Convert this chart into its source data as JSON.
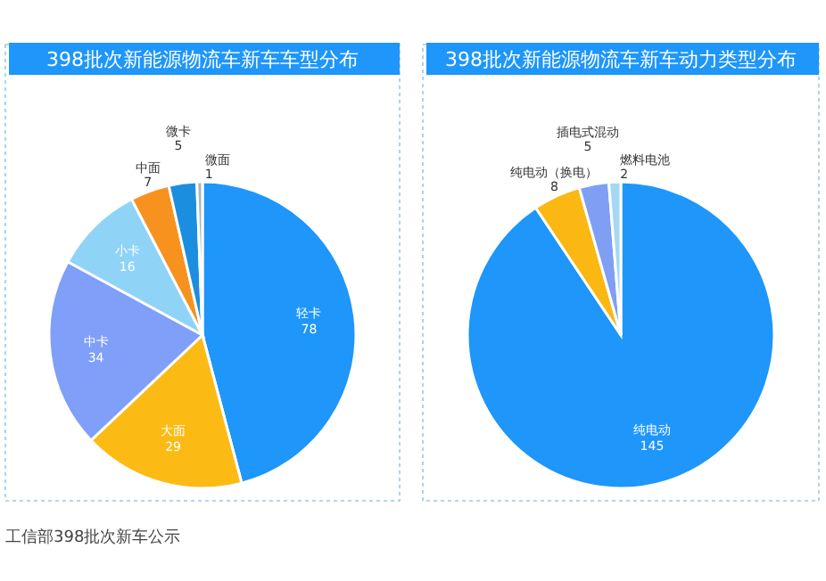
{
  "chart_data": [
    {
      "type": "pie",
      "title": "398批次新能源物流车新车车型分布",
      "categories": [
        "轻卡",
        "大面",
        "中卡",
        "小卡",
        "中面",
        "微卡",
        "微面"
      ],
      "values": [
        78,
        29,
        34,
        16,
        7,
        5,
        1
      ],
      "colors": [
        "#1e96fa",
        "#fbbb14",
        "#7f9ff8",
        "#8fd3f7",
        "#f7921e",
        "#1c8ee0",
        "#aab5c0"
      ],
      "data_labels": true,
      "annotations": [
        "工信部398批次新车公示"
      ]
    },
    {
      "type": "pie",
      "title": "398批次新能源物流车新车动力类型分布",
      "categories": [
        "纯电动",
        "纯电动（换电）",
        "插电式混动",
        "燃料电池"
      ],
      "values": [
        145,
        8,
        5,
        2
      ],
      "colors": [
        "#1e96fa",
        "#fbb812",
        "#7f9ff5",
        "#a5d8f5"
      ],
      "data_labels": true
    }
  ]
}
